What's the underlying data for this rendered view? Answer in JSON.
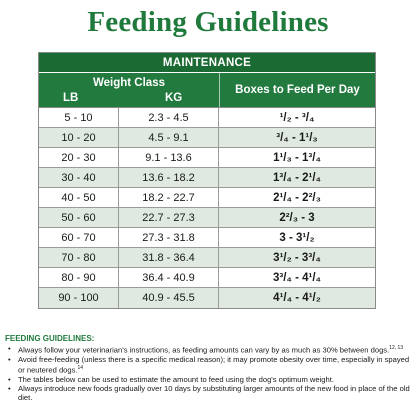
{
  "title": "Feeding Guidelines",
  "table": {
    "band": "MAINTENANCE",
    "weight_class_label": "Weight Class",
    "lb_label": "LB",
    "kg_label": "KG",
    "boxes_label": "Boxes to Feed Per Day",
    "rows": [
      {
        "lb": "5 - 10",
        "kg": "2.3 - 4.5",
        "boxes": "¹/₂ - ³/₄"
      },
      {
        "lb": "10 - 20",
        "kg": "4.5 - 9.1",
        "boxes": "³/₄ - 1¹/₃"
      },
      {
        "lb": "20 - 30",
        "kg": "9.1 - 13.6",
        "boxes": "1¹/₃ - 1³/₄"
      },
      {
        "lb": "30 - 40",
        "kg": "13.6 - 18.2",
        "boxes": "1³/₄ - 2¹/₄"
      },
      {
        "lb": "40 - 50",
        "kg": "18.2 - 22.7",
        "boxes": "2¹/₄ - 2²/₃"
      },
      {
        "lb": "50 - 60",
        "kg": "22.7 - 27.3",
        "boxes": "2²/₃ - 3"
      },
      {
        "lb": "60 - 70",
        "kg": "27.3 - 31.8",
        "boxes": "3 - 3¹/₂"
      },
      {
        "lb": "70 - 80",
        "kg": "31.8 - 36.4",
        "boxes": "3¹/₂ - 3³/₄"
      },
      {
        "lb": "80 - 90",
        "kg": "36.4 - 40.9",
        "boxes": "3³/₄ - 4¹/₄"
      },
      {
        "lb": "90 - 100",
        "kg": "40.9 - 45.5",
        "boxes": "4¹/₄ - 4¹/₂"
      }
    ]
  },
  "notes": {
    "heading": "FEEDING GUIDELINES:",
    "items": [
      {
        "text": "Always follow your veterinarian's instructions, as feeding amounts can vary by as much as 30% between dogs.",
        "sup": "12, 13"
      },
      {
        "text": "Avoid free-feeding (unless there is a specific medical reason); it may promote obesity over time, especially in spayed or neutered dogs.",
        "sup": "14"
      },
      {
        "text": "The tables below can be used to estimate the amount to feed using the dog's optimum weight.",
        "sup": ""
      },
      {
        "text": "Always introduce new foods gradually over 10 days by substituting larger amounts of the new food in place of the old diet.",
        "sup": ""
      }
    ]
  }
}
